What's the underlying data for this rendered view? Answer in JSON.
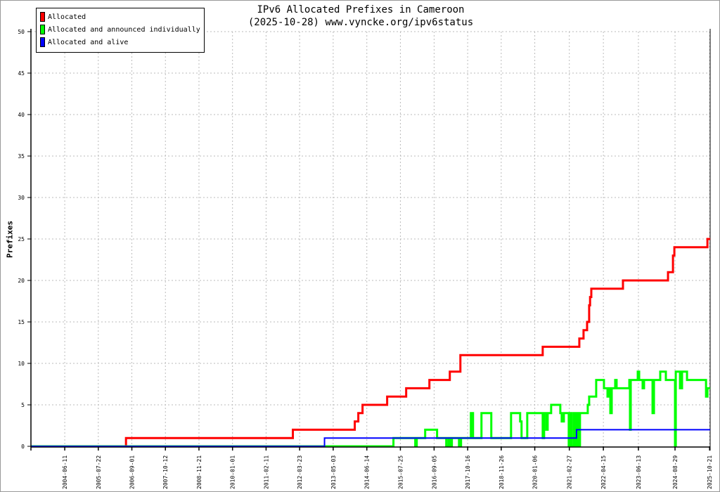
{
  "chart_data": {
    "type": "line",
    "title": "IPv6 Allocated Prefixes in Cameroon",
    "subtitle": "(2025-10-28) www.vyncke.org/ipv6status",
    "xlabel": "",
    "ylabel": "Prefixes",
    "xlim": [
      "2003-04-29",
      "2025-10-28"
    ],
    "ylim": [
      0,
      50
    ],
    "yticks": [
      0,
      5,
      10,
      15,
      20,
      25,
      30,
      35,
      40,
      45,
      50
    ],
    "xticks": [
      "2004-06-11",
      "2005-07-22",
      "2006-09-01",
      "2007-10-12",
      "2008-11-21",
      "2010-01-01",
      "2011-02-11",
      "2012-03-23",
      "2013-05-03",
      "2014-06-14",
      "2015-07-25",
      "2016-09-05",
      "2017-10-16",
      "2018-11-26",
      "2020-01-06",
      "2021-02-27",
      "2022-04-15",
      "2023-06-13",
      "2024-08-29",
      "2025-10-21"
    ],
    "grid": true,
    "legend_position": "top-left",
    "step": true,
    "series": [
      {
        "name": "Allocated",
        "color": "#ff0000",
        "points": [
          [
            "2003-04-29",
            0
          ],
          [
            "2006-06-22",
            1
          ],
          [
            "2012-01-01",
            2
          ],
          [
            "2014-01-19",
            3
          ],
          [
            "2014-03-03",
            4
          ],
          [
            "2014-04-23",
            5
          ],
          [
            "2015-02-15",
            6
          ],
          [
            "2015-10-03",
            7
          ],
          [
            "2016-07-10",
            8
          ],
          [
            "2017-03-14",
            9
          ],
          [
            "2017-07-20",
            11
          ],
          [
            "2020-04-11",
            12
          ],
          [
            "2021-06-28",
            13
          ],
          [
            "2021-08-18",
            14
          ],
          [
            "2021-09-30",
            15
          ],
          [
            "2021-10-25",
            17
          ],
          [
            "2021-11-05",
            18
          ],
          [
            "2021-11-20",
            19
          ],
          [
            "2022-12-08",
            20
          ],
          [
            "2024-06-05",
            21
          ],
          [
            "2024-08-04",
            23
          ],
          [
            "2024-08-21",
            24
          ],
          [
            "2025-09-25",
            25
          ],
          [
            "2025-10-28",
            25
          ]
        ]
      },
      {
        "name": "Allocated and announced individually",
        "color": "#00ff00",
        "points": [
          [
            "2003-04-29",
            0
          ],
          [
            "2015-05-02",
            1
          ],
          [
            "2016-01-21",
            0
          ],
          [
            "2016-02-08",
            1
          ],
          [
            "2016-05-20",
            2
          ],
          [
            "2016-10-11",
            1
          ],
          [
            "2017-01-30",
            0
          ],
          [
            "2017-02-25",
            1
          ],
          [
            "2017-03-14",
            0
          ],
          [
            "2017-04-08",
            1
          ],
          [
            "2017-07-03",
            0
          ],
          [
            "2017-07-28",
            1
          ],
          [
            "2017-11-24",
            4
          ],
          [
            "2017-12-20",
            1
          ],
          [
            "2018-04-01",
            4
          ],
          [
            "2018-07-29",
            1
          ],
          [
            "2019-03-25",
            4
          ],
          [
            "2019-07-13",
            3
          ],
          [
            "2019-07-30",
            1
          ],
          [
            "2019-10-07",
            4
          ],
          [
            "2020-04-11",
            1
          ],
          [
            "2020-04-28",
            4
          ],
          [
            "2020-05-24",
            2
          ],
          [
            "2020-06-10",
            4
          ],
          [
            "2020-07-22",
            5
          ],
          [
            "2020-11-10",
            4
          ],
          [
            "2020-11-27",
            3
          ],
          [
            "2020-12-23",
            4
          ],
          [
            "2021-02-20",
            0
          ],
          [
            "2021-03-09",
            4
          ],
          [
            "2021-03-26",
            0
          ],
          [
            "2021-04-21",
            4
          ],
          [
            "2021-05-08",
            0
          ],
          [
            "2021-06-02",
            4
          ],
          [
            "2021-06-19",
            0
          ],
          [
            "2021-07-06",
            4
          ],
          [
            "2021-10-08",
            5
          ],
          [
            "2021-10-25",
            6
          ],
          [
            "2022-01-18",
            8
          ],
          [
            "2022-04-22",
            7
          ],
          [
            "2022-06-04",
            6
          ],
          [
            "2022-06-21",
            7
          ],
          [
            "2022-07-08",
            4
          ],
          [
            "2022-07-25",
            7
          ],
          [
            "2022-09-05",
            8
          ],
          [
            "2022-09-22",
            7
          ],
          [
            "2023-02-23",
            8
          ],
          [
            "2023-03-03",
            2
          ],
          [
            "2023-03-12",
            8
          ],
          [
            "2023-06-05",
            9
          ],
          [
            "2023-06-22",
            8
          ],
          [
            "2023-08-03",
            7
          ],
          [
            "2023-08-20",
            8
          ],
          [
            "2023-12-01",
            4
          ],
          [
            "2023-12-18",
            8
          ],
          [
            "2024-03-03",
            9
          ],
          [
            "2024-05-10",
            8
          ],
          [
            "2024-08-29",
            0
          ],
          [
            "2024-09-07",
            9
          ],
          [
            "2024-10-28",
            7
          ],
          [
            "2024-11-22",
            9
          ],
          [
            "2025-01-21",
            8
          ],
          [
            "2025-09-08",
            6
          ],
          [
            "2025-09-25",
            7
          ],
          [
            "2025-10-28",
            7
          ]
        ]
      },
      {
        "name": "Allocated and alive",
        "color": "#0000ff",
        "points": [
          [
            "2003-04-29",
            0
          ],
          [
            "2013-01-18",
            1
          ],
          [
            "2021-05-25",
            2
          ],
          [
            "2025-10-28",
            2
          ]
        ]
      }
    ]
  }
}
